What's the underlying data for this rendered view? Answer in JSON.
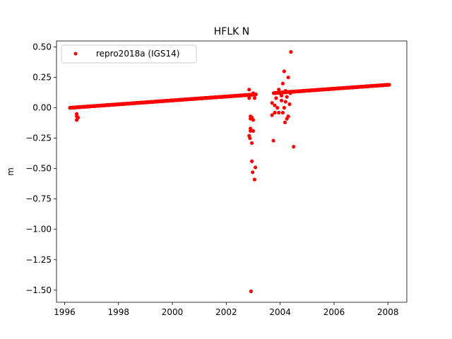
{
  "chart_data": {
    "type": "scatter",
    "title": "HFLK N",
    "xlabel": "",
    "ylabel": "m",
    "xlim": [
      1995.7,
      2008.7
    ],
    "ylim": [
      -1.6,
      0.55
    ],
    "xticks": [
      1996,
      1998,
      2000,
      2002,
      2004,
      2006,
      2008
    ],
    "xtick_labels": [
      "1996",
      "1998",
      "2000",
      "2002",
      "2004",
      "2006",
      "2008"
    ],
    "yticks": [
      0.5,
      0.25,
      0.0,
      -0.25,
      -0.5,
      -0.75,
      -1.0,
      -1.25,
      -1.5
    ],
    "ytick_labels": [
      "0.50",
      "0.25",
      "0.00",
      "−0.25",
      "−0.50",
      "−0.75",
      "−1.00",
      "−1.25",
      "−1.50"
    ],
    "grid": false,
    "legend_position": "top-left",
    "series": [
      {
        "name": "repro2018a (IGS14)",
        "color": "#ff0000",
        "marker": "circle",
        "trend": {
          "x": [
            1996.2,
            2008.05
          ],
          "y": [
            0.0,
            0.19
          ],
          "step": 0.01
        },
        "gap": [
          2003.1,
          2003.75
        ],
        "outliers": [
          [
            1996.45,
            -0.05
          ],
          [
            1996.45,
            -0.07
          ],
          [
            1996.45,
            -0.1
          ],
          [
            1996.5,
            -0.08
          ],
          [
            2002.85,
            0.15
          ],
          [
            2002.85,
            0.08
          ],
          [
            2002.9,
            -0.07
          ],
          [
            2002.9,
            -0.09
          ],
          [
            2002.9,
            -0.17
          ],
          [
            2002.9,
            -0.19
          ],
          [
            2002.85,
            -0.23
          ],
          [
            2002.88,
            -0.25
          ],
          [
            2002.95,
            -0.29
          ],
          [
            2002.95,
            -0.44
          ],
          [
            2002.98,
            -0.53
          ],
          [
            2002.92,
            -1.51
          ],
          [
            2003.0,
            -0.1
          ],
          [
            2003.0,
            0.12
          ],
          [
            2003.0,
            -0.19
          ],
          [
            2003.05,
            -0.59
          ],
          [
            2003.08,
            -0.49
          ],
          [
            2003.05,
            0.08
          ],
          [
            2002.95,
            -0.08
          ],
          [
            2003.7,
            0.04
          ],
          [
            2003.7,
            -0.06
          ],
          [
            2003.75,
            -0.27
          ],
          [
            2003.8,
            0.02
          ],
          [
            2003.8,
            -0.04
          ],
          [
            2003.85,
            0.08
          ],
          [
            2003.9,
            0.0
          ],
          [
            2003.95,
            -0.04
          ],
          [
            2004.0,
            0.12
          ],
          [
            2004.05,
            0.06
          ],
          [
            2004.1,
            0.2
          ],
          [
            2004.1,
            -0.04
          ],
          [
            2004.15,
            0.3
          ],
          [
            2004.15,
            0.0
          ],
          [
            2004.18,
            -0.12
          ],
          [
            2004.2,
            0.05
          ],
          [
            2004.25,
            -0.09
          ],
          [
            2004.25,
            0.09
          ],
          [
            2004.3,
            0.25
          ],
          [
            2004.3,
            -0.07
          ],
          [
            2004.35,
            0.03
          ],
          [
            2004.38,
            0.12
          ],
          [
            2004.4,
            0.46
          ],
          [
            2004.5,
            -0.32
          ],
          [
            2004.05,
            0.1
          ],
          [
            2003.95,
            0.15
          ],
          [
            2004.2,
            0.14
          ]
        ]
      }
    ]
  }
}
